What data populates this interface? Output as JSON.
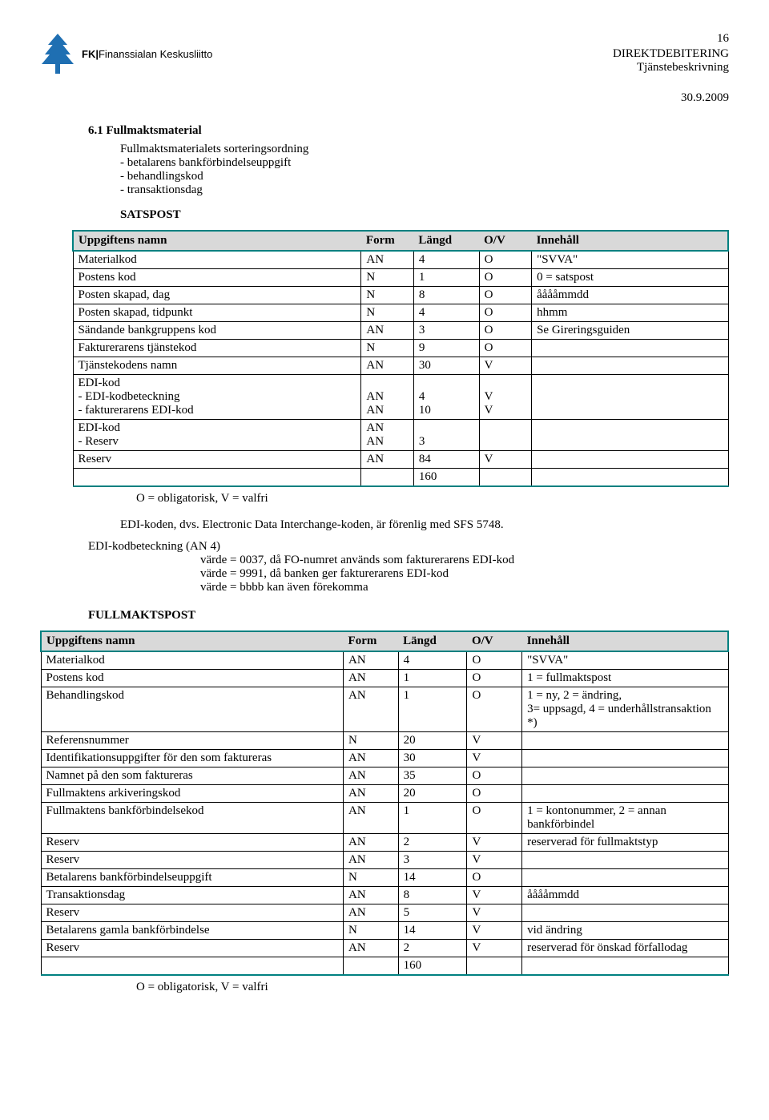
{
  "page_number": "16",
  "org_name_bold": "FK",
  "org_name_rest": "Finanssialan Keskusliitto",
  "doc_title_1": "DIREKTDEBITERING",
  "doc_title_2": "Tjänstebeskrivning",
  "doc_date": "30.9.2009",
  "section_heading": "6.1 Fullmaktsmaterial",
  "sort_intro": "Fullmaktsmaterialets sorteringsordning",
  "sort_items": [
    "- betalarens bankförbindelseuppgift",
    "- behandlingskod",
    "- transaktionsdag"
  ],
  "satspost_heading": "SATSPOST",
  "table_headers": {
    "name": "Uppgiftens namn",
    "form": "Form",
    "length": "Längd",
    "ov": "O/V",
    "content": "Innehåll"
  },
  "satspost_rows": [
    {
      "name": "Materialkod",
      "form": "AN",
      "len": "4",
      "ov": "O",
      "ih": "\"SVVA\""
    },
    {
      "name": "Postens kod",
      "form": "N",
      "len": "1",
      "ov": "O",
      "ih": "0 = satspost"
    },
    {
      "name": "Posten skapad, dag",
      "form": "N",
      "len": "8",
      "ov": "O",
      "ih": "ååååmmdd"
    },
    {
      "name": "Posten skapad, tidpunkt",
      "form": "N",
      "len": "4",
      "ov": "O",
      "ih": "hhmm"
    },
    {
      "name": "Sändande bankgruppens kod",
      "form": "AN",
      "len": "3",
      "ov": "O",
      "ih": "Se Gireringsguiden"
    },
    {
      "name": "Fakturerarens tjänstekod",
      "form": "N",
      "len": "9",
      "ov": "O",
      "ih": ""
    },
    {
      "name": "Tjänstekodens namn",
      "form": "AN",
      "len": "30",
      "ov": "V",
      "ih": ""
    },
    {
      "name": "EDI-kod\n- EDI-kodbeteckning\n- fakturerarens EDI-kod",
      "form": "\nAN\nAN",
      "len": "\n4\n10",
      "ov": "\nV\nV",
      "ih": ""
    },
    {
      "name": "EDI-kod\n- Reserv",
      "form": "AN\nAN",
      "len": "\n3",
      "ov": "",
      "ih": ""
    },
    {
      "name": "Reserv",
      "form": "AN",
      "len": "84",
      "ov": "V",
      "ih": ""
    },
    {
      "name": "",
      "form": "",
      "len": "160",
      "ov": "",
      "ih": ""
    }
  ],
  "legend_text": "O = obligatorisk, V = valfri",
  "edi_para_1": "EDI-koden, dvs. Electronic Data Interchange-koden, är förenlig med SFS 5748.",
  "edi_para_2": "EDI-kodbeteckning (AN 4)",
  "edi_sub": [
    "värde = 0037, då FO-numret används som fakturerarens EDI-kod",
    "värde = 9991, då banken ger fakturerarens EDI-kod",
    "värde = bbbb kan även förekomma"
  ],
  "fullmaktspost_heading": "FULLMAKTSPOST",
  "fullmaktspost_rows": [
    {
      "name": "Materialkod",
      "form": "AN",
      "len": "4",
      "ov": "O",
      "ih": "\"SVVA\""
    },
    {
      "name": "Postens kod",
      "form": "AN",
      "len": "1",
      "ov": "O",
      "ih": "1 = fullmaktspost"
    },
    {
      "name": "Behandlingskod",
      "form": "AN",
      "len": "1",
      "ov": "O",
      "ih": "1 = ny, 2 = ändring,\n3= uppsagd, 4 = underhållstransaktion *)"
    },
    {
      "name": "Referensnummer",
      "form": "N",
      "len": "20",
      "ov": "V",
      "ih": ""
    },
    {
      "name": "Identifikationsuppgifter för den som faktureras",
      "form": "AN",
      "len": "30",
      "ov": "V",
      "ih": ""
    },
    {
      "name": "Namnet på den som faktureras",
      "form": "AN",
      "len": "35",
      "ov": "O",
      "ih": ""
    },
    {
      "name": "Fullmaktens arkiveringskod",
      "form": "AN",
      "len": "20",
      "ov": "O",
      "ih": ""
    },
    {
      "name": "Fullmaktens bankförbindelsekod",
      "form": "AN",
      "len": "1",
      "ov": "O",
      "ih": "1 = kontonummer, 2 = annan bankförbindel"
    },
    {
      "name": "Reserv",
      "form": "AN",
      "len": "2",
      "ov": "V",
      "ih": "reserverad för fullmaktstyp"
    },
    {
      "name": "Reserv",
      "form": "AN",
      "len": "3",
      "ov": "V",
      "ih": ""
    },
    {
      "name": "Betalarens bankförbindelseuppgift",
      "form": "N",
      "len": "14",
      "ov": "O",
      "ih": ""
    },
    {
      "name": "Transaktionsdag",
      "form": "AN",
      "len": "8",
      "ov": "V",
      "ih": "ååååmmdd"
    },
    {
      "name": "Reserv",
      "form": "AN",
      "len": "5",
      "ov": "V",
      "ih": ""
    },
    {
      "name": "Betalarens gamla bankförbindelse",
      "form": "N",
      "len": "14",
      "ov": "V",
      "ih": "vid ändring"
    },
    {
      "name": "Reserv",
      "form": "AN",
      "len": "2",
      "ov": "V",
      "ih": "reserverad för önskad förfallodag"
    },
    {
      "name": "",
      "form": "",
      "len": "160",
      "ov": "",
      "ih": ""
    }
  ],
  "colors": {
    "teal": "#008080",
    "header_bg": "#d9d9d9",
    "logo_blue": "#1f6fb2"
  }
}
